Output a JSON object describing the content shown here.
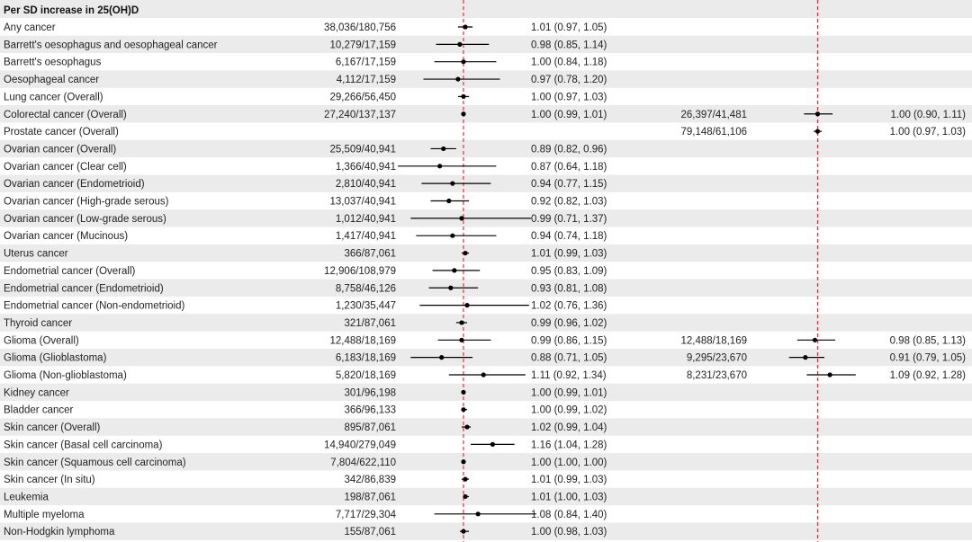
{
  "header": "Per SD increase in 25(OH)D",
  "chart_data": {
    "type": "forest",
    "null_value": 1.0,
    "x_range": [
      0.6,
      1.42
    ],
    "reference_line_color": "#e0313a",
    "ci_color": "#000000",
    "stripe_color": "#ebebeb",
    "columns": [
      "outcome",
      "cases_controls_1",
      "estimate_1",
      "cases_controls_2",
      "estimate_2"
    ],
    "rows": [
      {
        "outcome": "Any cancer",
        "cc1": "38,036/180,756",
        "est1": 1.01,
        "lo1": 0.97,
        "hi1": 1.05,
        "label1": "1.01 (0.97, 1.05)"
      },
      {
        "outcome": "Barrett's oesophagus and oesophageal cancer",
        "cc1": "10,279/17,159",
        "est1": 0.98,
        "lo1": 0.85,
        "hi1": 1.14,
        "label1": "0.98 (0.85, 1.14)"
      },
      {
        "outcome": "Barrett's oesophagus",
        "cc1": "6,167/17,159",
        "est1": 1.0,
        "lo1": 0.84,
        "hi1": 1.18,
        "label1": "1.00 (0.84, 1.18)"
      },
      {
        "outcome": "Oesophageal cancer",
        "cc1": "4,112/17,159",
        "est1": 0.97,
        "lo1": 0.78,
        "hi1": 1.2,
        "label1": "0.97 (0.78, 1.20)"
      },
      {
        "outcome": "Lung cancer (Overall)",
        "cc1": "29,266/56,450",
        "est1": 1.0,
        "lo1": 0.97,
        "hi1": 1.03,
        "label1": "1.00 (0.97, 1.03)"
      },
      {
        "outcome": "Colorectal cancer (Overall)",
        "cc1": "27,240/137,137",
        "est1": 1.0,
        "lo1": 0.99,
        "hi1": 1.01,
        "label1": "1.00 (0.99, 1.01)",
        "cc2": "26,397/41,481",
        "est2": 1.0,
        "lo2": 0.9,
        "hi2": 1.11,
        "label2": "1.00 (0.90, 1.11)"
      },
      {
        "outcome": "Prostate cancer (Overall)",
        "cc2": "79,148/61,106",
        "est2": 1.0,
        "lo2": 0.97,
        "hi2": 1.03,
        "label2": "1.00 (0.97, 1.03)"
      },
      {
        "outcome": "Ovarian cancer (Overall)",
        "cc1": "25,509/40,941",
        "est1": 0.89,
        "lo1": 0.82,
        "hi1": 0.96,
        "label1": "0.89 (0.82, 0.96)"
      },
      {
        "outcome": "Ovarian cancer (Clear cell)",
        "cc1": "1,366/40,941",
        "est1": 0.87,
        "lo1": 0.64,
        "hi1": 1.18,
        "label1": "0.87 (0.64, 1.18)"
      },
      {
        "outcome": "Ovarian cancer (Endometrioid)",
        "cc1": "2,810/40,941",
        "est1": 0.94,
        "lo1": 0.77,
        "hi1": 1.15,
        "label1": "0.94 (0.77, 1.15)"
      },
      {
        "outcome": "Ovarian cancer (High-grade serous)",
        "cc1": "13,037/40,941",
        "est1": 0.92,
        "lo1": 0.82,
        "hi1": 1.03,
        "label1": "0.92 (0.82, 1.03)"
      },
      {
        "outcome": "Ovarian cancer (Low-grade serous)",
        "cc1": "1,012/40,941",
        "est1": 0.99,
        "lo1": 0.71,
        "hi1": 1.37,
        "label1": "0.99 (0.71, 1.37)"
      },
      {
        "outcome": "Ovarian cancer (Mucinous)",
        "cc1": "1,417/40,941",
        "est1": 0.94,
        "lo1": 0.74,
        "hi1": 1.18,
        "label1": "0.94 (0.74, 1.18)"
      },
      {
        "outcome": "Uterus cancer",
        "cc1": "366/87,061",
        "est1": 1.01,
        "lo1": 0.99,
        "hi1": 1.03,
        "label1": "1.01 (0.99, 1.03)"
      },
      {
        "outcome": "Endometrial cancer (Overall)",
        "cc1": "12,906/108,979",
        "est1": 0.95,
        "lo1": 0.83,
        "hi1": 1.09,
        "label1": "0.95 (0.83, 1.09)"
      },
      {
        "outcome": "Endometrial cancer (Endometrioid)",
        "cc1": "8,758/46,126",
        "est1": 0.93,
        "lo1": 0.81,
        "hi1": 1.08,
        "label1": "0.93 (0.81, 1.08)"
      },
      {
        "outcome": "Endometrial cancer (Non-endometrioid)",
        "cc1": "1,230/35,447",
        "est1": 1.02,
        "lo1": 0.76,
        "hi1": 1.36,
        "label1": "1.02 (0.76, 1.36)"
      },
      {
        "outcome": "Thyroid cancer",
        "cc1": "321/87,061",
        "est1": 0.99,
        "lo1": 0.96,
        "hi1": 1.02,
        "label1": "0.99 (0.96, 1.02)"
      },
      {
        "outcome": "Glioma (Overall)",
        "cc1": "12,488/18,169",
        "est1": 0.99,
        "lo1": 0.86,
        "hi1": 1.15,
        "label1": "0.99 (0.86, 1.15)",
        "cc2": "12,488/18,169",
        "est2": 0.98,
        "lo2": 0.85,
        "hi2": 1.13,
        "label2": "0.98 (0.85, 1.13)"
      },
      {
        "outcome": "Glioma (Glioblastoma)",
        "cc1": "6,183/18,169",
        "est1": 0.88,
        "lo1": 0.71,
        "hi1": 1.05,
        "label1": "0.88 (0.71, 1.05)",
        "cc2": "9,295/23,670",
        "est2": 0.91,
        "lo2": 0.79,
        "hi2": 1.05,
        "label2": "0.91 (0.79, 1.05)"
      },
      {
        "outcome": "Glioma (Non-glioblastoma)",
        "cc1": "5,820/18,169",
        "est1": 1.11,
        "lo1": 0.92,
        "hi1": 1.34,
        "label1": "1.11 (0.92, 1.34)",
        "cc2": "8,231/23,670",
        "est2": 1.09,
        "lo2": 0.92,
        "hi2": 1.28,
        "label2": "1.09 (0.92, 1.28)"
      },
      {
        "outcome": "Kidney cancer",
        "cc1": "301/96,198",
        "est1": 1.0,
        "lo1": 0.99,
        "hi1": 1.01,
        "label1": "1.00 (0.99, 1.01)"
      },
      {
        "outcome": "Bladder cancer",
        "cc1": "366/96,133",
        "est1": 1.0,
        "lo1": 0.99,
        "hi1": 1.02,
        "label1": "1.00 (0.99, 1.02)"
      },
      {
        "outcome": "Skin cancer (Overall)",
        "cc1": "895/87,061",
        "est1": 1.02,
        "lo1": 0.99,
        "hi1": 1.04,
        "label1": "1.02 (0.99, 1.04)"
      },
      {
        "outcome": "Skin cancer (Basal cell carcinoma)",
        "cc1": "14,940/279,049",
        "est1": 1.16,
        "lo1": 1.04,
        "hi1": 1.28,
        "label1": "1.16 (1.04, 1.28)"
      },
      {
        "outcome": "Skin cancer (Squamous cell carcinoma)",
        "cc1": "7,804/622,110",
        "est1": 1.0,
        "lo1": 1.0,
        "hi1": 1.0,
        "label1": "1.00 (1.00, 1.00)"
      },
      {
        "outcome": "Skin cancer (In situ)",
        "cc1": "342/86,839",
        "est1": 1.01,
        "lo1": 0.99,
        "hi1": 1.03,
        "label1": "1.01 (0.99, 1.03)"
      },
      {
        "outcome": "Leukemia",
        "cc1": "198/87,061",
        "est1": 1.01,
        "lo1": 1.0,
        "hi1": 1.03,
        "label1": "1.01 (1.00, 1.03)"
      },
      {
        "outcome": "Multiple myeloma",
        "cc1": "7,717/29,304",
        "est1": 1.08,
        "lo1": 0.84,
        "hi1": 1.4,
        "label1": "1.08 (0.84, 1.40)"
      },
      {
        "outcome": "Non-Hodgkin lymphoma",
        "cc1": "155/87,061",
        "est1": 1.0,
        "lo1": 0.98,
        "hi1": 1.03,
        "label1": "1.00 (0.98, 1.03)"
      }
    ]
  }
}
